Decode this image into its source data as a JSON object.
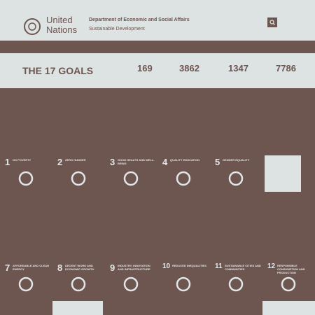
{
  "header": {
    "brand_line1": "United",
    "brand_line2": "Nations",
    "department": "Department of Economic and Social Affairs",
    "site": "Sustainable Development"
  },
  "stats": {
    "title": "THE 17 GOALS",
    "numbers": [
      "169",
      "3862",
      "1347",
      "7786"
    ]
  },
  "goals": [
    {
      "number": "1",
      "title": "NO POVERTY"
    },
    {
      "number": "2",
      "title": "ZERO HUNGER"
    },
    {
      "number": "3",
      "title": "GOOD HEALTH AND WELL-BEING"
    },
    {
      "number": "4",
      "title": "QUALITY EDUCATION"
    },
    {
      "number": "5",
      "title": "GENDER EQUALITY"
    },
    {
      "number": "7",
      "title": "AFFORDABLE AND CLEAN ENERGY"
    },
    {
      "number": "8",
      "title": "DECENT WORK AND ECONOMIC GROWTH"
    },
    {
      "number": "9",
      "title": "INDUSTRY, INNOVATION AND INFRASTRUCTURE"
    },
    {
      "number": "10",
      "title": "REDUCED INEQUALITIES"
    },
    {
      "number": "11",
      "title": "SUSTAINABLE CITIES AND COMMUNITIES"
    },
    {
      "number": "12",
      "title": "RESPONSIBLE CONSUMPTION AND PRODUCTION"
    }
  ]
}
